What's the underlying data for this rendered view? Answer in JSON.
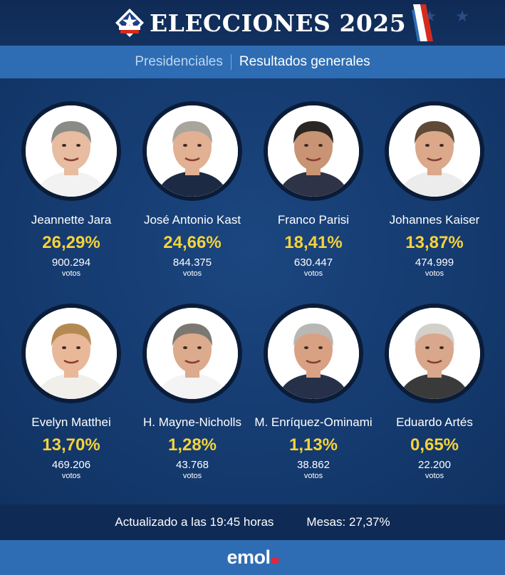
{
  "header": {
    "title": "ELECCIONES 2025",
    "logo_icon": "chile-star-icon",
    "colors": {
      "red": "#d52b1e",
      "blue": "#0039a6",
      "white": "#ffffff"
    }
  },
  "subheader": {
    "tab_primary": "Presidenciales",
    "tab_secondary": "Resultados generales"
  },
  "candidates": [
    {
      "name": "Jeannette Jara",
      "percent": "26,29%",
      "votes": "900.294",
      "votes_label": "votos",
      "hair": "#8a8a86",
      "skin": "#e7bca0",
      "shirt": "#f2f2f2"
    },
    {
      "name": "José Antonio Kast",
      "percent": "24,66%",
      "votes": "844.375",
      "votes_label": "votos",
      "hair": "#a9a49c",
      "skin": "#e2b092",
      "shirt": "#1d2a44"
    },
    {
      "name": "Franco Parisi",
      "percent": "18,41%",
      "votes": "630.447",
      "votes_label": "votos",
      "hair": "#2a2623",
      "skin": "#c99474",
      "shirt": "#2e3347"
    },
    {
      "name": "Johannes Kaiser",
      "percent": "13,87%",
      "votes": "474.999",
      "votes_label": "votos",
      "hair": "#5e4a36",
      "skin": "#dba88a",
      "shirt": "#ececec"
    },
    {
      "name": "Evelyn Matthei",
      "percent": "13,70%",
      "votes": "469.206",
      "votes_label": "votos",
      "hair": "#b58a52",
      "skin": "#e9b899",
      "shirt": "#f1efe9"
    },
    {
      "name": "H. Mayne-Nicholls",
      "percent": "1,28%",
      "votes": "43.768",
      "votes_label": "votos",
      "hair": "#7b7872",
      "skin": "#dcaa8c",
      "shirt": "#f4f4f4"
    },
    {
      "name": "M. Enríquez-Ominami",
      "percent": "1,13%",
      "votes": "38.862",
      "votes_label": "votos",
      "hair": "#b9b7b3",
      "skin": "#d8a184",
      "shirt": "#273049"
    },
    {
      "name": "Eduardo Artés",
      "percent": "0,65%",
      "votes": "22.200",
      "votes_label": "votos",
      "hair": "#d3d0ca",
      "skin": "#d9a78b",
      "shirt": "#3a3a3a"
    }
  ],
  "footer": {
    "updated": "Actualizado a las 19:45 horas",
    "tables": "Mesas: 27,37%"
  },
  "brand": {
    "name": "emol",
    "accent": "#e4243b"
  }
}
